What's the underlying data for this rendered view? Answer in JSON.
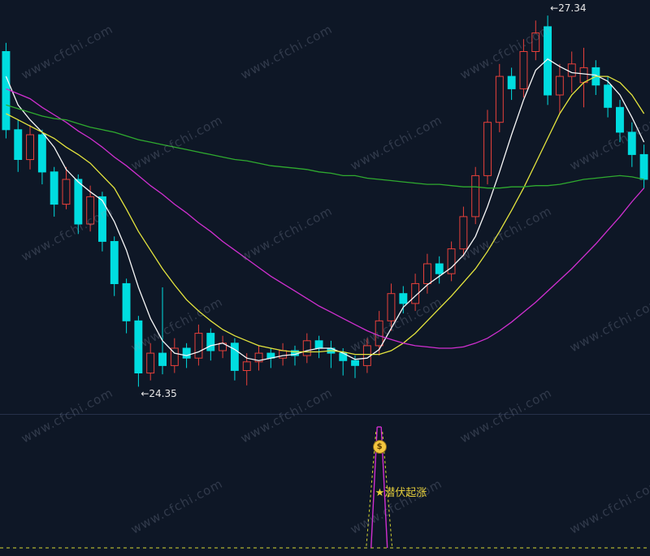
{
  "watermark": {
    "text": "www.cfchi.com"
  },
  "chart": {
    "background": "#0e1726",
    "up_color": "#e8403a",
    "down_color": "#00dde0",
    "annotation_color": "#e8e8e8"
  },
  "chart_data": {
    "type": "candlestick",
    "title": "",
    "ylim": [
      24.3,
      27.4
    ],
    "grid": false,
    "x_axis_visible": false,
    "y_axis_visible": false,
    "high_label": "←27.34",
    "low_label": "←24.35",
    "high_value": 27.34,
    "low_value": 24.35,
    "high_index": 45,
    "low_index": 11,
    "ohlc_order": [
      "open",
      "high",
      "low",
      "close"
    ],
    "candles": [
      [
        27.05,
        27.12,
        26.35,
        26.42
      ],
      [
        26.42,
        26.5,
        26.08,
        26.18
      ],
      [
        26.18,
        26.46,
        26.1,
        26.38
      ],
      [
        26.38,
        26.42,
        25.98,
        26.08
      ],
      [
        26.08,
        26.12,
        25.72,
        25.82
      ],
      [
        25.82,
        26.12,
        25.78,
        26.02
      ],
      [
        26.02,
        26.06,
        25.58,
        25.66
      ],
      [
        25.66,
        25.97,
        25.6,
        25.88
      ],
      [
        25.88,
        25.92,
        25.44,
        25.52
      ],
      [
        25.52,
        25.56,
        25.08,
        25.18
      ],
      [
        25.18,
        25.22,
        24.78,
        24.88
      ],
      [
        24.88,
        24.92,
        24.35,
        24.46
      ],
      [
        24.46,
        24.7,
        24.4,
        24.62
      ],
      [
        24.62,
        25.15,
        24.45,
        24.52
      ],
      [
        24.52,
        24.74,
        24.46,
        24.66
      ],
      [
        24.66,
        24.7,
        24.5,
        24.58
      ],
      [
        24.58,
        24.85,
        24.52,
        24.78
      ],
      [
        24.78,
        24.82,
        24.56,
        24.64
      ],
      [
        24.64,
        24.76,
        24.58,
        24.7
      ],
      [
        24.7,
        24.74,
        24.4,
        24.48
      ],
      [
        24.48,
        24.62,
        24.36,
        24.55
      ],
      [
        24.55,
        24.68,
        24.48,
        24.62
      ],
      [
        24.62,
        24.66,
        24.5,
        24.58
      ],
      [
        24.58,
        24.7,
        24.52,
        24.64
      ],
      [
        24.64,
        24.68,
        24.52,
        24.6
      ],
      [
        24.6,
        24.78,
        24.54,
        24.72
      ],
      [
        24.72,
        24.76,
        24.58,
        24.66
      ],
      [
        24.66,
        24.72,
        24.5,
        24.62
      ],
      [
        24.62,
        24.66,
        24.44,
        24.56
      ],
      [
        24.56,
        24.6,
        24.42,
        24.52
      ],
      [
        24.52,
        24.74,
        24.46,
        24.68
      ],
      [
        24.68,
        24.96,
        24.6,
        24.88
      ],
      [
        24.88,
        25.18,
        24.8,
        25.1
      ],
      [
        25.1,
        25.16,
        24.94,
        25.02
      ],
      [
        25.02,
        25.26,
        24.96,
        25.18
      ],
      [
        25.18,
        25.42,
        25.1,
        25.34
      ],
      [
        25.34,
        25.4,
        25.18,
        25.26
      ],
      [
        25.26,
        25.52,
        25.2,
        25.46
      ],
      [
        25.46,
        25.8,
        25.4,
        25.72
      ],
      [
        25.72,
        26.12,
        25.66,
        26.05
      ],
      [
        26.05,
        26.58,
        25.98,
        26.48
      ],
      [
        26.48,
        26.95,
        26.4,
        26.85
      ],
      [
        26.85,
        26.92,
        26.66,
        26.75
      ],
      [
        26.75,
        27.15,
        26.68,
        27.05
      ],
      [
        27.05,
        27.3,
        26.98,
        27.2
      ],
      [
        27.25,
        27.34,
        26.62,
        26.7
      ],
      [
        26.7,
        26.95,
        26.55,
        26.85
      ],
      [
        26.85,
        27.05,
        26.72,
        26.95
      ],
      [
        26.8,
        27.08,
        26.6,
        26.92
      ],
      [
        26.92,
        26.98,
        26.7,
        26.78
      ],
      [
        26.78,
        26.85,
        26.52,
        26.6
      ],
      [
        26.6,
        26.66,
        26.32,
        26.4
      ],
      [
        26.4,
        26.48,
        26.12,
        26.22
      ],
      [
        26.22,
        26.3,
        25.95,
        26.02
      ]
    ],
    "ma_lines": [
      {
        "name": "white-fast-ma",
        "color": "#f8f8f8",
        "values": [
          26.85,
          26.62,
          26.5,
          26.4,
          26.28,
          26.1,
          26.0,
          25.92,
          25.85,
          25.68,
          25.45,
          25.15,
          24.9,
          24.72,
          24.62,
          24.6,
          24.63,
          24.68,
          24.7,
          24.65,
          24.58,
          24.56,
          24.58,
          24.6,
          24.61,
          24.64,
          24.66,
          24.66,
          24.62,
          24.57,
          24.58,
          24.65,
          24.82,
          24.99,
          25.08,
          25.17,
          25.24,
          25.31,
          25.41,
          25.56,
          25.8,
          26.08,
          26.38,
          26.66,
          26.9,
          26.99,
          26.93,
          26.88,
          26.87,
          26.86,
          26.81,
          26.7,
          26.52,
          26.32
        ]
      },
      {
        "name": "yellow-ma",
        "color": "#e5e53e",
        "values": [
          26.55,
          26.5,
          26.45,
          26.4,
          26.35,
          26.28,
          26.22,
          26.15,
          26.05,
          25.95,
          25.78,
          25.6,
          25.45,
          25.3,
          25.17,
          25.05,
          24.96,
          24.88,
          24.81,
          24.76,
          24.72,
          24.68,
          24.66,
          24.64,
          24.63,
          24.63,
          24.63,
          24.64,
          24.63,
          24.61,
          24.61,
          24.61,
          24.64,
          24.7,
          24.78,
          24.88,
          24.98,
          25.08,
          25.19,
          25.3,
          25.44,
          25.6,
          25.77,
          25.95,
          26.15,
          26.35,
          26.55,
          26.7,
          26.8,
          26.85,
          26.85,
          26.8,
          26.7,
          26.55
        ]
      },
      {
        "name": "magenta-ma",
        "color": "#d02fd0",
        "values": [
          26.75,
          26.71,
          26.67,
          26.6,
          26.54,
          26.48,
          26.41,
          26.35,
          26.28,
          26.2,
          26.13,
          26.05,
          25.97,
          25.9,
          25.82,
          25.75,
          25.67,
          25.6,
          25.52,
          25.45,
          25.38,
          25.31,
          25.24,
          25.18,
          25.12,
          25.06,
          25.0,
          24.95,
          24.9,
          24.85,
          24.8,
          24.76,
          24.73,
          24.7,
          24.68,
          24.67,
          24.66,
          24.66,
          24.67,
          24.7,
          24.74,
          24.8,
          24.87,
          24.95,
          25.03,
          25.12,
          25.21,
          25.3,
          25.4,
          25.5,
          25.61,
          25.72,
          25.84,
          25.95
        ]
      },
      {
        "name": "green-slow-ma",
        "color": "#2faa2f",
        "values": [
          26.62,
          26.59,
          26.56,
          26.53,
          26.51,
          26.5,
          26.47,
          26.44,
          26.42,
          26.4,
          26.37,
          26.34,
          26.32,
          26.3,
          26.28,
          26.26,
          26.24,
          26.22,
          26.2,
          26.18,
          26.17,
          26.15,
          26.13,
          26.12,
          26.11,
          26.1,
          26.08,
          26.07,
          26.05,
          26.05,
          26.03,
          26.02,
          26.01,
          26.0,
          25.99,
          25.98,
          25.98,
          25.97,
          25.96,
          25.96,
          25.95,
          25.95,
          25.96,
          25.96,
          25.97,
          25.97,
          25.98,
          26.0,
          26.02,
          26.03,
          26.04,
          26.05,
          26.04,
          26.02
        ]
      }
    ],
    "sub_indicator": {
      "type": "signal-spike",
      "signal_index": 31,
      "label": "★潜伏起涨",
      "icon": "$",
      "icon_color": "#f4c63e",
      "spike_color": "#d02fd0",
      "dash_color": "#d8d832",
      "baseline_style": "dashed"
    }
  }
}
